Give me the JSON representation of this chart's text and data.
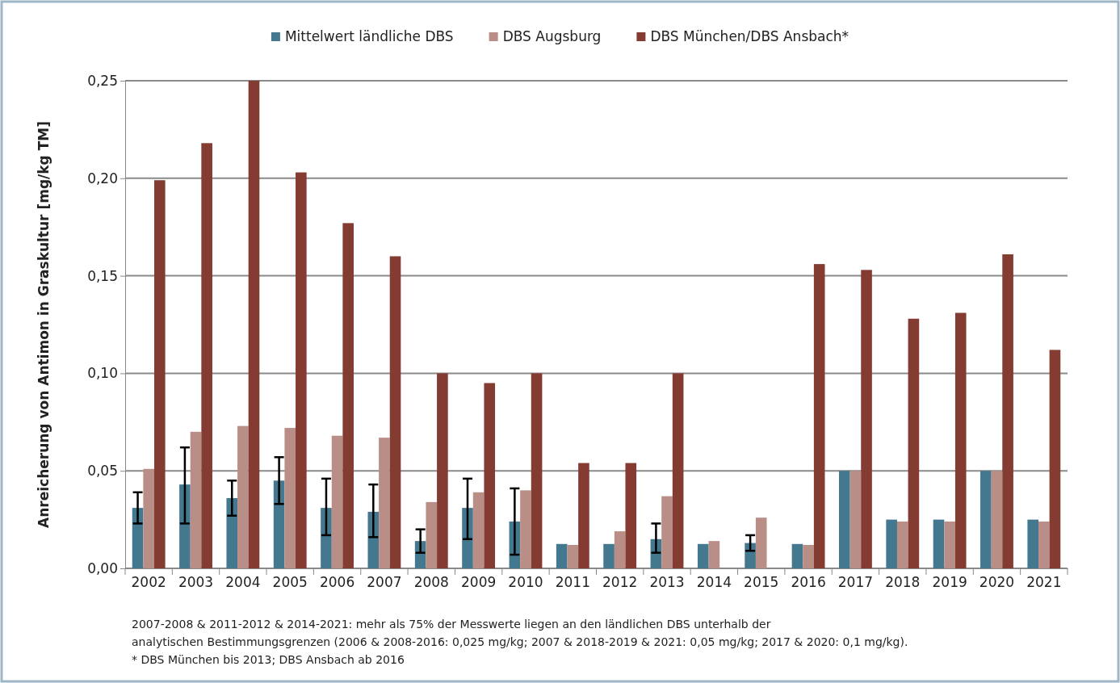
{
  "chart_data": {
    "type": "bar",
    "ylabel": "Anreicherung von Antimon in Graskultur  [mg/kg TM]",
    "categories": [
      "2002",
      "2003",
      "2004",
      "2005",
      "2006",
      "2007",
      "2008",
      "2009",
      "2010",
      "2011",
      "2012",
      "2013",
      "2014",
      "2015",
      "2016",
      "2017",
      "2018",
      "2019",
      "2020",
      "2021"
    ],
    "series": [
      {
        "name": "Mittelwert ländliche DBS",
        "color": "#44788e",
        "values": [
          0.031,
          0.043,
          0.036,
          0.045,
          0.031,
          0.029,
          0.014,
          0.031,
          0.024,
          0.0125,
          0.0125,
          0.015,
          0.0125,
          0.013,
          0.0125,
          0.05,
          0.025,
          0.025,
          0.05,
          0.025
        ],
        "errors": [
          [
            0.023,
            0.039
          ],
          [
            0.023,
            0.062
          ],
          [
            0.027,
            0.045
          ],
          [
            0.033,
            0.057
          ],
          [
            0.017,
            0.046
          ],
          [
            0.016,
            0.043
          ],
          [
            0.008,
            0.02
          ],
          [
            0.015,
            0.046
          ],
          [
            0.007,
            0.041
          ],
          null,
          null,
          [
            0.008,
            0.023
          ],
          null,
          [
            0.009,
            0.017
          ],
          null,
          null,
          null,
          null,
          null,
          null
        ]
      },
      {
        "name": "DBS Augsburg",
        "color": "#b98e86",
        "values": [
          0.051,
          0.07,
          0.073,
          0.072,
          0.068,
          0.067,
          0.034,
          0.039,
          0.04,
          0.012,
          0.019,
          0.037,
          0.014,
          0.026,
          0.012,
          0.05,
          0.024,
          0.024,
          0.05,
          0.024
        ]
      },
      {
        "name": "DBS München/DBS Ansbach*",
        "color": "#843c32",
        "values": [
          0.199,
          0.218,
          0.25,
          0.203,
          0.177,
          0.16,
          0.1,
          0.095,
          0.1,
          0.054,
          0.054,
          0.1,
          null,
          null,
          0.156,
          0.153,
          0.128,
          0.131,
          0.161,
          0.112
        ]
      }
    ],
    "ylim": [
      0,
      0.25
    ],
    "yticks": [
      {
        "value": 0,
        "label": "0,00"
      },
      {
        "value": 0.05,
        "label": "0,05"
      },
      {
        "value": 0.1,
        "label": "0,10"
      },
      {
        "value": 0.15,
        "label": "0,15"
      },
      {
        "value": 0.2,
        "label": "0,20"
      },
      {
        "value": 0.25,
        "label": "0,25"
      }
    ],
    "grid": "y",
    "legend": "top",
    "annotations": [
      "2007-2008 & 2011-2012 & 2014-2021: mehr als 75% der Messwerte liegen an den ländlichen DBS unterhalb der",
      "analytischen Bestimmungsgrenzen (2006 & 2008-2016: 0,025 mg/kg; 2007 & 2018-2019 & 2021: 0,05 mg/kg; 2017 & 2020: 0,1 mg/kg).",
      "* DBS München bis 2013; DBS Ansbach ab 2016"
    ]
  }
}
